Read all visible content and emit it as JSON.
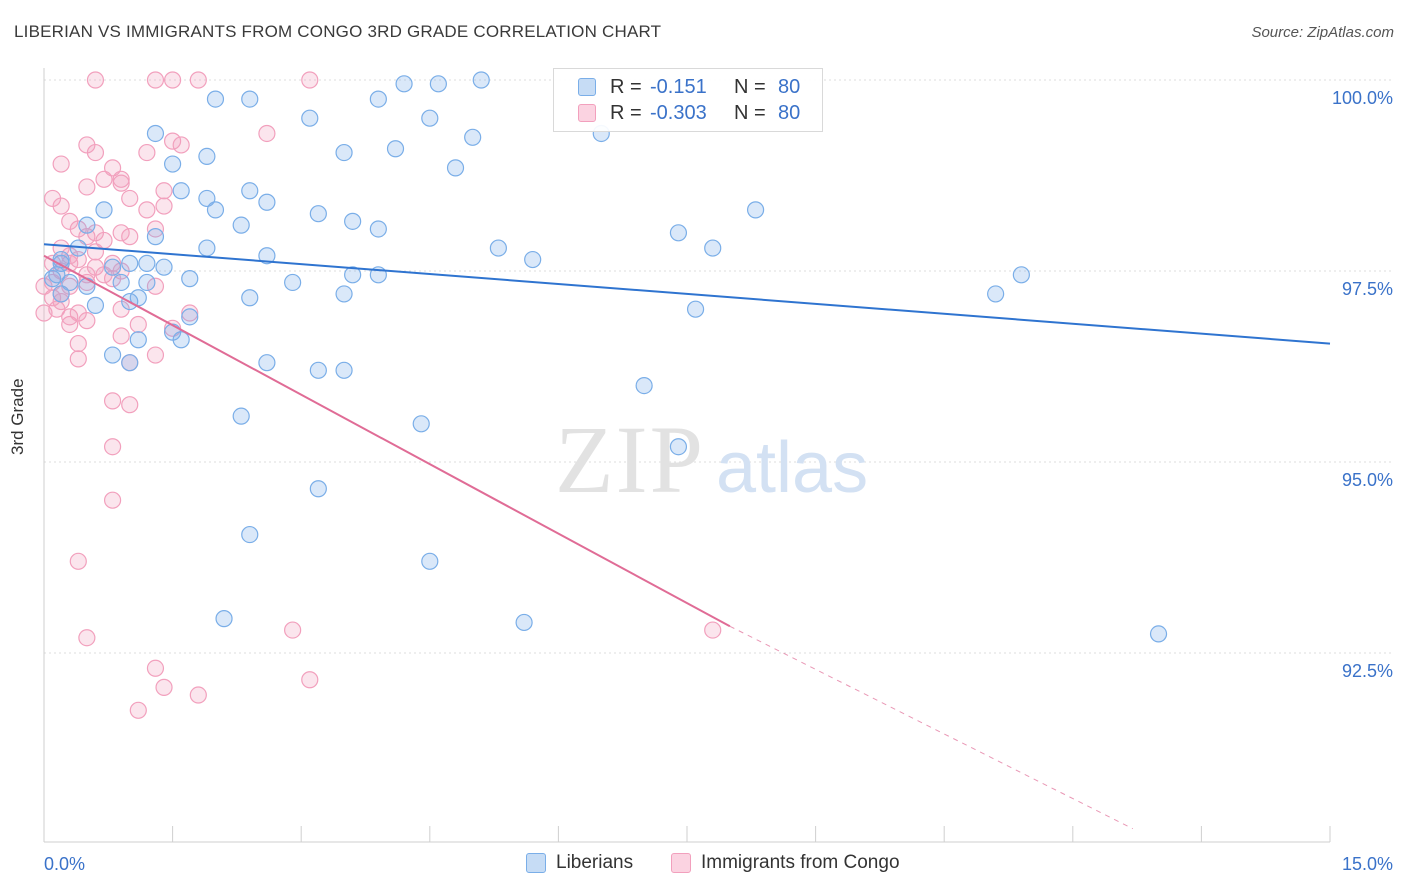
{
  "header": {
    "title": "LIBERIAN VS IMMIGRANTS FROM CONGO 3RD GRADE CORRELATION CHART",
    "source": "Source: ZipAtlas.com"
  },
  "watermark": {
    "zip": "ZIP",
    "atlas": "atlas"
  },
  "legend": {
    "rows": [
      {
        "r_label": "R =",
        "r_value": "-0.151",
        "n_label": "N =",
        "n_value": "80",
        "color": "#7aaee8"
      },
      {
        "r_label": "R =",
        "r_value": "-0.303",
        "n_label": "N =",
        "n_value": "80",
        "color": "#f2a0bd"
      }
    ]
  },
  "bottom_legend": {
    "items": [
      {
        "label": "Liberians",
        "color": "#7aaee8"
      },
      {
        "label": "Immigrants from Congo",
        "color": "#f2a0bd"
      }
    ]
  },
  "chart_data": {
    "type": "scatter",
    "title": "LIBERIAN VS IMMIGRANTS FROM CONGO 3RD GRADE CORRELATION CHART",
    "xlabel": "",
    "ylabel": "3rd Grade",
    "xlim": [
      0,
      15
    ],
    "ylim": [
      90.2,
      100.4
    ],
    "x_tick_labels": [
      "0.0%",
      "15.0%"
    ],
    "y_ticks": [
      92.5,
      95.0,
      97.5,
      100.0
    ],
    "y_tick_labels": [
      "92.5%",
      "95.0%",
      "97.5%",
      "100.0%"
    ],
    "grid": true,
    "legend_position": "top-center",
    "series": [
      {
        "name": "Liberians",
        "color": "#7aaee8",
        "line_color": "#2f74d0",
        "trend": {
          "x": [
            0.0,
            15.0
          ],
          "y": [
            97.85,
            96.55
          ]
        },
        "points": [
          [
            1.6,
            98.55
          ],
          [
            1.9,
            99.0
          ],
          [
            2.0,
            99.75
          ],
          [
            2.4,
            99.75
          ],
          [
            3.1,
            99.5
          ],
          [
            3.5,
            99.05
          ],
          [
            3.9,
            99.75
          ],
          [
            4.5,
            99.5
          ],
          [
            4.8,
            98.85
          ],
          [
            5.0,
            99.25
          ],
          [
            4.1,
            99.1
          ],
          [
            4.2,
            99.95
          ],
          [
            4.6,
            99.95
          ],
          [
            5.1,
            100.0
          ],
          [
            6.5,
            99.3
          ],
          [
            1.3,
            99.3
          ],
          [
            1.5,
            98.9
          ],
          [
            1.9,
            98.45
          ],
          [
            2.4,
            98.55
          ],
          [
            2.0,
            98.3
          ],
          [
            2.6,
            98.4
          ],
          [
            3.2,
            98.25
          ],
          [
            3.6,
            98.15
          ],
          [
            3.9,
            98.05
          ],
          [
            0.5,
            98.1
          ],
          [
            0.7,
            98.3
          ],
          [
            1.3,
            97.95
          ],
          [
            1.2,
            97.6
          ],
          [
            0.4,
            97.8
          ],
          [
            0.8,
            97.55
          ],
          [
            0.3,
            97.35
          ],
          [
            0.5,
            97.3
          ],
          [
            0.2,
            97.65
          ],
          [
            0.1,
            97.4
          ],
          [
            0.2,
            97.2
          ],
          [
            0.6,
            97.05
          ],
          [
            0.9,
            97.35
          ],
          [
            1.2,
            97.35
          ],
          [
            1.0,
            97.6
          ],
          [
            1.4,
            97.55
          ],
          [
            1.7,
            97.4
          ],
          [
            2.4,
            97.15
          ],
          [
            2.9,
            97.35
          ],
          [
            3.6,
            97.45
          ],
          [
            3.9,
            97.45
          ],
          [
            1.9,
            97.8
          ],
          [
            2.3,
            98.1
          ],
          [
            2.6,
            97.7
          ],
          [
            3.5,
            97.2
          ],
          [
            5.3,
            97.8
          ],
          [
            5.7,
            97.65
          ],
          [
            7.4,
            98.0
          ],
          [
            7.8,
            97.8
          ],
          [
            8.3,
            98.3
          ],
          [
            11.1,
            97.2
          ],
          [
            11.4,
            97.45
          ],
          [
            1.1,
            97.15
          ],
          [
            1.5,
            96.7
          ],
          [
            1.0,
            96.3
          ],
          [
            0.8,
            96.4
          ],
          [
            1.7,
            96.9
          ],
          [
            1.6,
            96.6
          ],
          [
            2.6,
            96.3
          ],
          [
            3.2,
            96.2
          ],
          [
            3.5,
            96.2
          ],
          [
            4.4,
            95.5
          ],
          [
            2.3,
            95.6
          ],
          [
            7.0,
            96.0
          ],
          [
            7.6,
            97.0
          ],
          [
            3.2,
            94.65
          ],
          [
            2.4,
            94.05
          ],
          [
            4.5,
            93.7
          ],
          [
            2.1,
            92.95
          ],
          [
            5.6,
            92.9
          ],
          [
            13.0,
            92.75
          ],
          [
            7.4,
            95.2
          ],
          [
            1.1,
            96.6
          ],
          [
            0.2,
            97.6
          ],
          [
            0.15,
            97.45
          ],
          [
            1.0,
            97.1
          ]
        ]
      },
      {
        "name": "Immigrants from Congo",
        "color": "#f2a0bd",
        "line_color": "#e06c96",
        "trend": {
          "x": [
            0.0,
            8.0
          ],
          "y": [
            97.7,
            92.85
          ]
        },
        "trend_dashed": {
          "x": [
            8.0,
            12.7
          ],
          "y": [
            92.85,
            90.2
          ]
        },
        "points": [
          [
            0.6,
            100.0
          ],
          [
            1.3,
            100.0
          ],
          [
            1.5,
            100.0
          ],
          [
            1.8,
            100.0
          ],
          [
            3.1,
            100.0
          ],
          [
            0.5,
            99.15
          ],
          [
            0.6,
            99.05
          ],
          [
            1.2,
            99.05
          ],
          [
            1.5,
            99.2
          ],
          [
            2.6,
            99.3
          ],
          [
            0.2,
            98.9
          ],
          [
            0.8,
            98.85
          ],
          [
            0.9,
            98.7
          ],
          [
            0.7,
            98.7
          ],
          [
            0.5,
            98.6
          ],
          [
            1.0,
            98.45
          ],
          [
            1.2,
            98.3
          ],
          [
            1.4,
            98.35
          ],
          [
            0.1,
            98.45
          ],
          [
            0.2,
            98.35
          ],
          [
            0.3,
            98.15
          ],
          [
            0.4,
            98.05
          ],
          [
            0.5,
            97.95
          ],
          [
            0.6,
            98.0
          ],
          [
            0.7,
            97.9
          ],
          [
            0.2,
            97.8
          ],
          [
            0.3,
            97.7
          ],
          [
            0.4,
            97.65
          ],
          [
            0.6,
            97.55
          ],
          [
            0.7,
            97.45
          ],
          [
            0.8,
            97.4
          ],
          [
            0.5,
            97.35
          ],
          [
            0.3,
            97.3
          ],
          [
            0.2,
            97.2
          ],
          [
            0.1,
            97.15
          ],
          [
            0.15,
            97.0
          ],
          [
            0.3,
            96.9
          ],
          [
            0.4,
            96.95
          ],
          [
            0.9,
            97.0
          ],
          [
            1.3,
            97.3
          ],
          [
            1.5,
            96.75
          ],
          [
            0.4,
            96.55
          ],
          [
            0.9,
            96.65
          ],
          [
            0.4,
            96.35
          ],
          [
            1.0,
            96.3
          ],
          [
            1.0,
            95.75
          ],
          [
            1.3,
            96.4
          ],
          [
            0.8,
            95.8
          ],
          [
            0.8,
            95.2
          ],
          [
            0.8,
            94.5
          ],
          [
            0.4,
            93.7
          ],
          [
            0.5,
            92.7
          ],
          [
            2.9,
            92.8
          ],
          [
            7.8,
            92.8
          ],
          [
            1.3,
            92.3
          ],
          [
            3.1,
            92.15
          ],
          [
            1.4,
            92.05
          ],
          [
            1.8,
            91.95
          ],
          [
            1.1,
            91.75
          ],
          [
            1.6,
            99.15
          ],
          [
            0.9,
            98.0
          ],
          [
            1.0,
            97.95
          ],
          [
            0.6,
            97.75
          ],
          [
            0.8,
            97.6
          ],
          [
            0.5,
            97.45
          ],
          [
            0.3,
            97.6
          ],
          [
            0.2,
            97.5
          ],
          [
            0.1,
            97.6
          ],
          [
            0.0,
            97.3
          ],
          [
            0.1,
            97.35
          ],
          [
            0.2,
            97.1
          ],
          [
            0.0,
            96.95
          ],
          [
            0.3,
            96.8
          ],
          [
            0.5,
            96.85
          ],
          [
            1.7,
            96.95
          ],
          [
            1.1,
            96.8
          ],
          [
            1.3,
            98.05
          ],
          [
            0.9,
            98.65
          ],
          [
            1.4,
            98.55
          ],
          [
            0.9,
            97.5
          ]
        ]
      }
    ]
  }
}
